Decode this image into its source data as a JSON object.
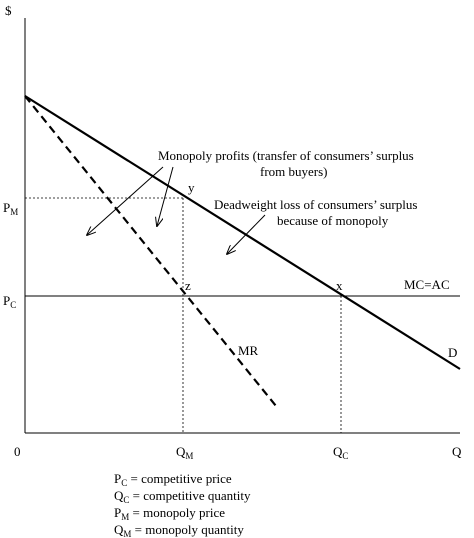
{
  "axes": {
    "y_label": "$",
    "x_label": "Q",
    "origin_label": "0",
    "pm_main": "P",
    "pm_sub": "M",
    "pc_main": "P",
    "pc_sub": "C",
    "qm_main": "Q",
    "qm_sub": "M",
    "qc_main": "Q",
    "qc_sub": "C"
  },
  "curves": {
    "demand_label": "D",
    "mr_label": "MR",
    "mcac_label": "MC=AC"
  },
  "points": {
    "y": "y",
    "z": "z",
    "x": "x"
  },
  "annotations": {
    "monopoly_profits_line1": "Monopoly profits (transfer of consumers’ surplus",
    "monopoly_profits_line2": "from buyers)",
    "deadweight_line1": "Deadweight loss of consumers’ surplus",
    "deadweight_line2": "because of monopoly"
  },
  "legend": [
    {
      "main": "P",
      "sub": "C",
      "text": " = competitive price"
    },
    {
      "main": "Q",
      "sub": "C",
      "text": " = competitive quantity"
    },
    {
      "main": "P",
      "sub": "M",
      "text": " = monopoly price"
    },
    {
      "main": "Q",
      "sub": "M",
      "text": " = monopoly quantity"
    }
  ],
  "colors": {
    "ink": "#000000",
    "background": "#ffffff"
  }
}
